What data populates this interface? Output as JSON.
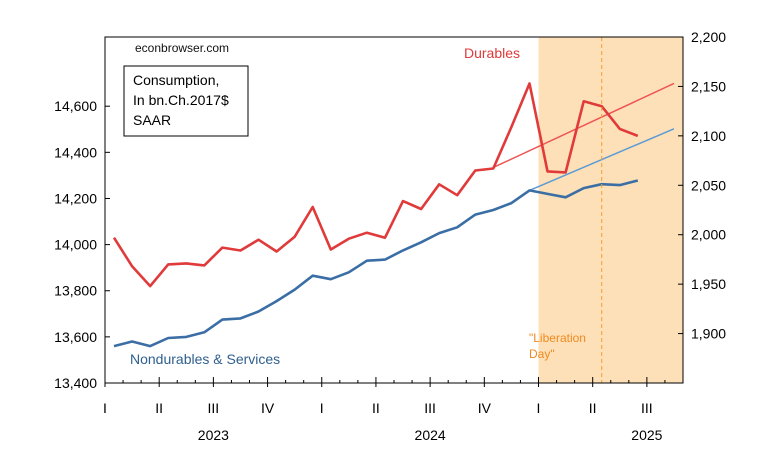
{
  "chart_data": {
    "type": "line",
    "source_label": "econbrowser.com",
    "box_lines": [
      "Consumption,",
      "In bn.Ch.2017$",
      "SAAR"
    ],
    "annotation": "\"Liberation Day\"",
    "annotation_lines": [
      "\"Liberation",
      "Day\""
    ],
    "left_axis": {
      "ylim": [
        13400,
        14900
      ],
      "ticks": [
        13400,
        13600,
        13800,
        14000,
        14200,
        14400,
        14600
      ],
      "tick_labels": [
        "13,400",
        "13,600",
        "13,800",
        "14,000",
        "14,200",
        "14,400",
        "14,600"
      ]
    },
    "right_axis": {
      "ylim": [
        1850,
        2200
      ],
      "ticks": [
        1900,
        1950,
        2000,
        2050,
        2100,
        2150,
        2200
      ],
      "tick_labels": [
        "1,900",
        "1,950",
        "2,000",
        "2,050",
        "2,100",
        "2,150",
        "2,200"
      ]
    },
    "x_axis": {
      "months": 32,
      "quarter_labels": [
        "I",
        "II",
        "III",
        "IV",
        "I",
        "II",
        "III",
        "IV",
        "I",
        "II",
        "III"
      ],
      "years": [
        "2023",
        "2024",
        "2025"
      ]
    },
    "shade": {
      "from": "2025-01",
      "to": "2025-08",
      "color": "#fde0b8"
    },
    "event_line": {
      "date": "2025-04",
      "color": "#f0a030"
    },
    "series": [
      {
        "name": "Nondurables & Services",
        "axis": "left",
        "color": "#3a6ea5",
        "start": "2023-01",
        "values": [
          13560,
          13580,
          13560,
          13595,
          13600,
          13620,
          13675,
          13680,
          13710,
          13755,
          13805,
          13865,
          13850,
          13880,
          13930,
          13935,
          13975,
          14010,
          14050,
          14075,
          14130,
          14150,
          14180,
          14235,
          14220,
          14205,
          14245,
          14262,
          14258,
          14278
        ]
      },
      {
        "name": "Durables",
        "axis": "right",
        "color": "#e03a3a",
        "start": "2023-01",
        "values": [
          1997,
          1968,
          1948,
          1970,
          1971,
          1969,
          1987,
          1984,
          1995,
          1983,
          1998,
          2028,
          1985,
          1996,
          2002,
          1997,
          2034,
          2026,
          2051,
          2040,
          2065,
          2067,
          2109,
          2153,
          2064,
          2063,
          2135,
          2130,
          2107,
          2100
        ]
      }
    ],
    "trends": [
      {
        "axis": "left",
        "color": "#5b9bd5",
        "from_date": "2024-12",
        "to_date": "2025-08",
        "from_value": 14235,
        "to_value": 14502
      },
      {
        "axis": "right",
        "color": "#ee5555",
        "from_date": "2024-10",
        "to_date": "2025-08",
        "from_value": 2068,
        "to_value": 2153
      }
    ]
  }
}
